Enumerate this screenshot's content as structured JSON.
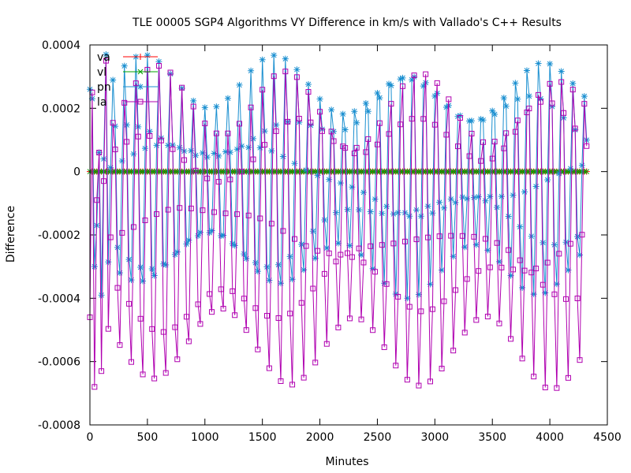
{
  "chart_data": {
    "type": "line",
    "title": "TLE 00005 SGP4 Algorithms VY Difference in km/s with Vallado's C++ Results",
    "xlabel": "Minutes",
    "ylabel": "Difference",
    "xlim": [
      0,
      4500
    ],
    "ylim": [
      -0.0008,
      0.0004
    ],
    "x_ticks": [
      0,
      500,
      1000,
      1500,
      2000,
      2500,
      3000,
      3500,
      4000,
      4500
    ],
    "y_ticks": [
      -0.0008,
      -0.0006,
      -0.0004,
      -0.0002,
      0,
      0.0002,
      0.0004
    ],
    "x_tick_labels": [
      "0",
      "500",
      "1000",
      "1500",
      "2000",
      "2500",
      "3000",
      "3500",
      "4000",
      "4500"
    ],
    "y_tick_labels": [
      "-0.0008",
      "-0.0006",
      "-0.0004",
      "-0.0002",
      "0",
      "0.0002",
      "0.0004"
    ],
    "legend_position": "top-left",
    "grid": false,
    "sampling_step": 20,
    "x_end": 4320,
    "series": [
      {
        "name": "va",
        "color": "#ff0000",
        "marker": "plus",
        "model": "zero"
      },
      {
        "name": "vl",
        "color": "#00a000",
        "marker": "cross",
        "model": "zero"
      },
      {
        "name": "pn",
        "color": "#1a8fd0",
        "marker": "star",
        "model": "oscillation",
        "period": 100,
        "phase": 1.25,
        "max": 0.00037,
        "min": -0.0004,
        "values_first": [
          0.00026,
          0.00023,
          -0.0003,
          -0.00017,
          6e-05,
          -0.00039,
          4e-05,
          0.00037
        ]
      },
      {
        "name": "la",
        "color": "#b000b0",
        "marker": "square",
        "model": "oscillation",
        "period": 100,
        "phase": 1.05,
        "max": 0.00035,
        "min": -0.00069,
        "values_first": [
          -0.00046,
          0.00025,
          -0.00068,
          -9e-05,
          6e-05,
          -0.00063,
          -3e-05,
          0.00035
        ]
      }
    ]
  }
}
